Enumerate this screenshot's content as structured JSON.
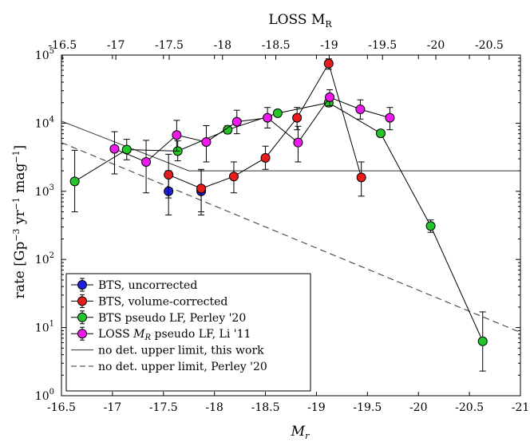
{
  "chart_data": {
    "type": "scatter",
    "title": "",
    "xlabel": "M",
    "xlabel_sub": "r",
    "top_xlabel": "LOSS M",
    "top_xlabel_sub": "R",
    "ylabel_prefix": "rate [Gp",
    "ylabel_sup1": "−3",
    "ylabel_mid1": " yr",
    "ylabel_sup2": "−1",
    "ylabel_mid2": " mag",
    "ylabel_sup3": "−1",
    "ylabel_suffix": "]",
    "xlim": [
      -16.5,
      -21
    ],
    "ylim_log10": [
      0,
      5
    ],
    "x_ticks": [
      "-16.5",
      "-17",
      "-17.5",
      "-18",
      "-18.5",
      "-19",
      "-19.5",
      "-20",
      "-20.5",
      "-21"
    ],
    "y_ticks": [
      {
        "base": "10",
        "exp": "0"
      },
      {
        "base": "10",
        "exp": "1"
      },
      {
        "base": "10",
        "exp": "2"
      },
      {
        "base": "10",
        "exp": "3"
      },
      {
        "base": "10",
        "exp": "4"
      },
      {
        "base": "10",
        "exp": "5"
      }
    ],
    "top_x_ticks": [
      "-16.5",
      "-17",
      "-17.5",
      "-18",
      "-18.5",
      "-19",
      "-19.5",
      "-20",
      "-20.5"
    ],
    "top_axis_map": {
      "bottom_at_top_-16.5": -16.51,
      "bottom_per_top_unit": 1.046
    },
    "legend_position": "bottom-left",
    "series": [
      {
        "name": "BTS, uncorrected",
        "color": "#1f1fe0",
        "connected": false,
        "points": [
          {
            "x": -17.55,
            "y": 1000,
            "lo": 450,
            "hi": 2000
          },
          {
            "x": -17.87,
            "y": 1000,
            "lo": 450,
            "hi": 2000
          }
        ]
      },
      {
        "name": "BTS, volume-corrected",
        "color": "#e81c1c",
        "connected": true,
        "points": [
          {
            "x": -17.55,
            "y": 1750,
            "lo": 800,
            "hi": 3500
          },
          {
            "x": -17.87,
            "y": 1100,
            "lo": 500,
            "hi": 2100
          },
          {
            "x": -18.19,
            "y": 1650,
            "lo": 950,
            "hi": 2700
          },
          {
            "x": -18.5,
            "y": 3100,
            "lo": 2100,
            "hi": 4600
          },
          {
            "x": -18.81,
            "y": 12000,
            "lo": 8000,
            "hi": 17000
          },
          {
            "x": -19.12,
            "y": 75000,
            "lo": 62000,
            "hi": 88000
          },
          {
            "x": -19.44,
            "y": 1600,
            "lo": 850,
            "hi": 2700
          }
        ]
      },
      {
        "name": "BTS pseudo LF, Perley '20",
        "color": "#22c62a",
        "connected": true,
        "points": [
          {
            "x": -16.63,
            "y": 1400,
            "lo": 500,
            "hi": 4000
          },
          {
            "x": -17.14,
            "y": 4100,
            "lo": 2900,
            "hi": 5800
          },
          {
            "x": -17.64,
            "y": 3900,
            "lo": 2800,
            "hi": 5500
          },
          {
            "x": -18.13,
            "y": 8000,
            "lo": 7000,
            "hi": 9200
          },
          {
            "x": -18.62,
            "y": 14000,
            "lo": 12800,
            "hi": 15300
          },
          {
            "x": -19.12,
            "y": 20000,
            "lo": 17500,
            "hi": 22500
          },
          {
            "x": -19.63,
            "y": 7100,
            "lo": 6300,
            "hi": 8000
          },
          {
            "x": -20.12,
            "y": 310,
            "lo": 250,
            "hi": 380
          },
          {
            "x": -20.63,
            "y": 6.3,
            "lo": 2.3,
            "hi": 17
          }
        ]
      },
      {
        "name": "LOSS M_R pseudo LF, Li '11",
        "color": "#f01af0",
        "connected": true,
        "points": [
          {
            "x": -17.02,
            "y": 4200,
            "lo": 1800,
            "hi": 7500
          },
          {
            "x": -17.33,
            "y": 2700,
            "lo": 950,
            "hi": 5600
          },
          {
            "x": -17.63,
            "y": 6700,
            "lo": 3900,
            "hi": 11000
          },
          {
            "x": -17.92,
            "y": 5300,
            "lo": 2700,
            "hi": 9200
          },
          {
            "x": -18.22,
            "y": 10500,
            "lo": 7000,
            "hi": 15500
          },
          {
            "x": -18.52,
            "y": 12000,
            "lo": 8500,
            "hi": 17000
          },
          {
            "x": -18.82,
            "y": 5200,
            "lo": 2700,
            "hi": 9000
          },
          {
            "x": -19.13,
            "y": 24000,
            "lo": 18000,
            "hi": 31000
          },
          {
            "x": -19.43,
            "y": 16000,
            "lo": 11500,
            "hi": 22000
          },
          {
            "x": -19.72,
            "y": 12000,
            "lo": 8000,
            "hi": 17000
          }
        ]
      }
    ],
    "lines": [
      {
        "name": "no det. upper limit, this work",
        "dashed": false,
        "points": [
          {
            "x": -16.5,
            "y": 10700
          },
          {
            "x": -17.75,
            "y": 2000
          },
          {
            "x": -21,
            "y": 2000
          }
        ]
      },
      {
        "name": "no det. upper limit, Perley '20",
        "dashed": true,
        "points": [
          {
            "x": -16.5,
            "y": 5200
          },
          {
            "x": -21,
            "y": 8.5
          }
        ]
      }
    ],
    "legend": [
      {
        "kind": "marker",
        "color": "#1f1fe0",
        "label": "BTS, uncorrected"
      },
      {
        "kind": "marker",
        "color": "#e81c1c",
        "label": "BTS, volume-corrected"
      },
      {
        "kind": "marker",
        "color": "#22c62a",
        "label": "BTS pseudo LF, Perley '20"
      },
      {
        "kind": "marker",
        "color": "#f01af0",
        "label_prefix": "LOSS ",
        "label_math": "M",
        "label_sub": "R",
        "label_suffix": " pseudo LF, Li '11"
      },
      {
        "kind": "solid",
        "label": "no det. upper limit, this work"
      },
      {
        "kind": "dashed",
        "label": "no det. upper limit, Perley '20"
      }
    ]
  }
}
